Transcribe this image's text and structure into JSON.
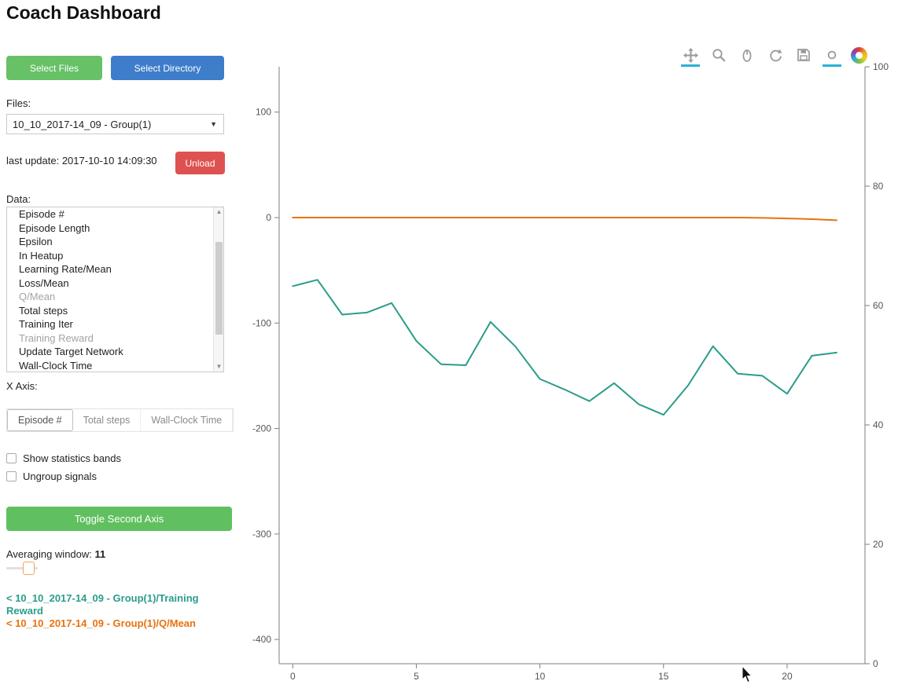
{
  "header": {
    "title": "Coach Dashboard"
  },
  "sidebar": {
    "select_files_label": "Select Files",
    "select_directory_label": "Select Directory",
    "files_label": "Files:",
    "files_selected": "10_10_2017-14_09 - Group(1)",
    "last_update_label": "last update: 2017-10-10 14:09:30",
    "unload_label": "Unload",
    "data_label": "Data:",
    "data_items": [
      {
        "label": "Episode #",
        "selected": false
      },
      {
        "label": "Episode Length",
        "selected": false
      },
      {
        "label": "Epsilon",
        "selected": false
      },
      {
        "label": "In Heatup",
        "selected": false
      },
      {
        "label": "Learning Rate/Mean",
        "selected": false
      },
      {
        "label": "Loss/Mean",
        "selected": false
      },
      {
        "label": "Q/Mean",
        "selected": true
      },
      {
        "label": "Total steps",
        "selected": false
      },
      {
        "label": "Training Iter",
        "selected": false
      },
      {
        "label": "Training Reward",
        "selected": true
      },
      {
        "label": "Update Target Network",
        "selected": false
      },
      {
        "label": "Wall-Clock Time",
        "selected": false
      }
    ],
    "x_axis_label": "X Axis:",
    "x_axis_tabs": [
      {
        "label": "Episode #",
        "active": true
      },
      {
        "label": "Total steps",
        "active": false
      },
      {
        "label": "Wall-Clock Time",
        "active": false
      }
    ],
    "checkboxes": [
      {
        "label": "Show statistics bands",
        "checked": false
      },
      {
        "label": "Ungroup signals",
        "checked": false
      }
    ],
    "toggle_second_axis_label": "Toggle Second Axis",
    "averaging_window_label": "Averaging window:",
    "averaging_window_value": "11",
    "legend": [
      {
        "label": "< 10_10_2017-14_09 - Group(1)/Training Reward",
        "color": "#2a9d8a"
      },
      {
        "label": "< 10_10_2017-14_09 - Group(1)/Q/Mean",
        "color": "#e8720c"
      }
    ]
  },
  "toolbar": {
    "icons": [
      "pan-icon",
      "box-zoom-icon",
      "wheel-zoom-icon",
      "reset-icon",
      "save-icon",
      "hover-icon",
      "bokeh-logo"
    ],
    "active_tools": [
      "pan-icon",
      "hover-icon"
    ],
    "active_underline_color": "#2bb1d8"
  },
  "chart_data": {
    "type": "line",
    "title": "",
    "xlabel": "",
    "ylabel": "",
    "grid": false,
    "legend_position": "external-left-panel",
    "x": [
      0,
      1,
      2,
      3,
      4,
      5,
      6,
      7,
      8,
      9,
      10,
      11,
      12,
      13,
      14,
      15,
      16,
      17,
      18,
      19,
      20,
      21,
      22
    ],
    "series": [
      {
        "name": "Training Reward",
        "color": "#2a9d8a",
        "axis": "left",
        "values": [
          -65,
          -59,
          -92,
          -90,
          -81,
          -117,
          -139,
          -140,
          -99,
          -122,
          -153,
          -163,
          -174,
          -157,
          -177,
          -187,
          -159,
          -122,
          -148,
          -150,
          -167,
          -131,
          -128
        ]
      },
      {
        "name": "Q/Mean",
        "color": "#e8720c",
        "axis": "left",
        "values": [
          0,
          0,
          0,
          0,
          0,
          0,
          0,
          0,
          0,
          0,
          0,
          0,
          0,
          0,
          0,
          0,
          0,
          0,
          0,
          -0.3,
          -0.8,
          -1.5,
          -2.5
        ]
      }
    ],
    "x_ticks": [
      0,
      5,
      10,
      15,
      20
    ],
    "left_ticks": [
      100,
      0,
      -100,
      -200,
      -300,
      -400
    ],
    "right_ticks": [
      100,
      80,
      60,
      40,
      20,
      0
    ],
    "x_range": [
      -0.55,
      23.15
    ],
    "left_range": [
      -423,
      143
    ],
    "right_range": [
      0,
      100
    ]
  }
}
